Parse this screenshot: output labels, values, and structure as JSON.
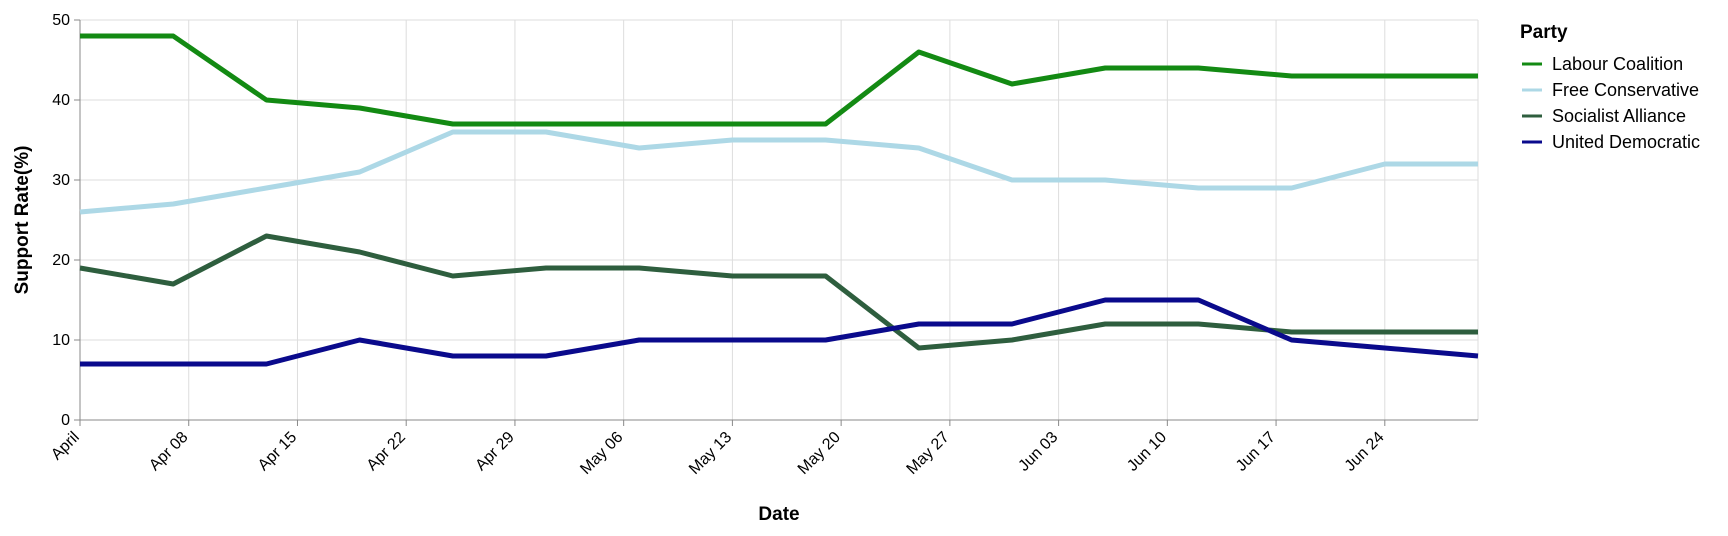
{
  "chart_data": {
    "type": "line",
    "title": "",
    "xlabel": "Date",
    "ylabel": "Support Rate(%)",
    "x_tick_labels": [
      "April",
      "Apr 08",
      "Apr 15",
      "Apr 22",
      "Apr 29",
      "May 06",
      "May 13",
      "May 20",
      "May 27",
      "Jun 03",
      "Jun 10",
      "Jun 17",
      "Jun 24"
    ],
    "x_tick_dates": [
      "2024-04-01",
      "2024-04-08",
      "2024-04-15",
      "2024-04-22",
      "2024-04-29",
      "2024-05-06",
      "2024-05-13",
      "2024-05-20",
      "2024-05-27",
      "2024-06-03",
      "2024-06-10",
      "2024-06-17",
      "2024-06-24"
    ],
    "x_range": [
      "2024-04-01",
      "2024-06-30"
    ],
    "y_ticks": [
      0,
      10,
      20,
      30,
      40,
      50
    ],
    "ylim": [
      0,
      50
    ],
    "grid": true,
    "legend_title": "Party",
    "legend_position": "right",
    "x": [
      "2024-04-01",
      "2024-04-07",
      "2024-04-13",
      "2024-04-19",
      "2024-04-25",
      "2024-05-01",
      "2024-05-07",
      "2024-05-13",
      "2024-05-19",
      "2024-05-25",
      "2024-05-31",
      "2024-06-06",
      "2024-06-12",
      "2024-06-18",
      "2024-06-24",
      "2024-06-30"
    ],
    "series": [
      {
        "name": "Labour Coalition",
        "color": "#138a13",
        "values": [
          48,
          48,
          40,
          39,
          37,
          37,
          37,
          37,
          37,
          46,
          42,
          44,
          44,
          43,
          43,
          43
        ]
      },
      {
        "name": "Free Conservative",
        "color": "#add8e6",
        "values": [
          26,
          27,
          29,
          31,
          36,
          36,
          34,
          35,
          35,
          34,
          30,
          30,
          29,
          29,
          32,
          32
        ]
      },
      {
        "name": "Socialist Alliance",
        "color": "#2e5e3e",
        "values": [
          19,
          17,
          23,
          21,
          18,
          19,
          19,
          18,
          18,
          9,
          10,
          12,
          12,
          11,
          11,
          11
        ]
      },
      {
        "name": "United Democratic",
        "color": "#0a0a8c",
        "values": [
          7,
          7,
          7,
          10,
          8,
          8,
          10,
          10,
          10,
          12,
          12,
          15,
          15,
          10,
          9,
          8
        ]
      }
    ]
  }
}
